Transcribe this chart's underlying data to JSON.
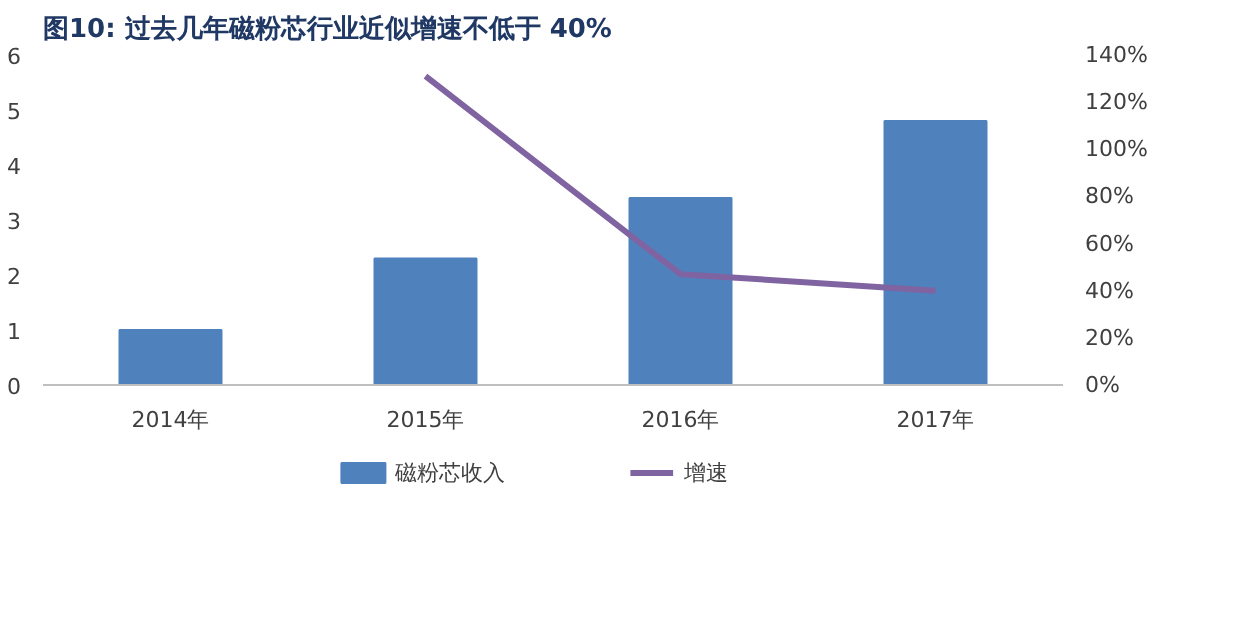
{
  "chart_data": {
    "type": "bar",
    "title": "图10:  过去几年磁粉芯行业近似增速不低于 40%",
    "categories": [
      "2014年",
      "2015年",
      "2016年",
      "2017年"
    ],
    "series": [
      {
        "name": "磁粉芯收入",
        "color": "#4f81bd",
        "values": [
          1.0,
          2.3,
          3.4,
          4.8
        ]
      },
      {
        "name": "增速",
        "type": "line",
        "axis": "y2",
        "color": "#8064a2",
        "values": [
          null,
          131,
          47,
          40
        ]
      }
    ],
    "ylim": [
      0,
      6
    ],
    "yticks": [
      0,
      1,
      2,
      3,
      4,
      5,
      6
    ],
    "y2lim": [
      0,
      140
    ],
    "y2ticks": [
      {
        "value": 0,
        "label": "0%"
      },
      {
        "value": 20,
        "label": "20%"
      },
      {
        "value": 40,
        "label": "40%"
      },
      {
        "value": 60,
        "label": "60%"
      },
      {
        "value": 80,
        "label": "80%"
      },
      {
        "value": 100,
        "label": "100%"
      },
      {
        "value": 120,
        "label": "120%"
      },
      {
        "value": 140,
        "label": "140%"
      }
    ],
    "grid": false,
    "legend": "bottom",
    "marker": "none",
    "line_style": "solid"
  }
}
